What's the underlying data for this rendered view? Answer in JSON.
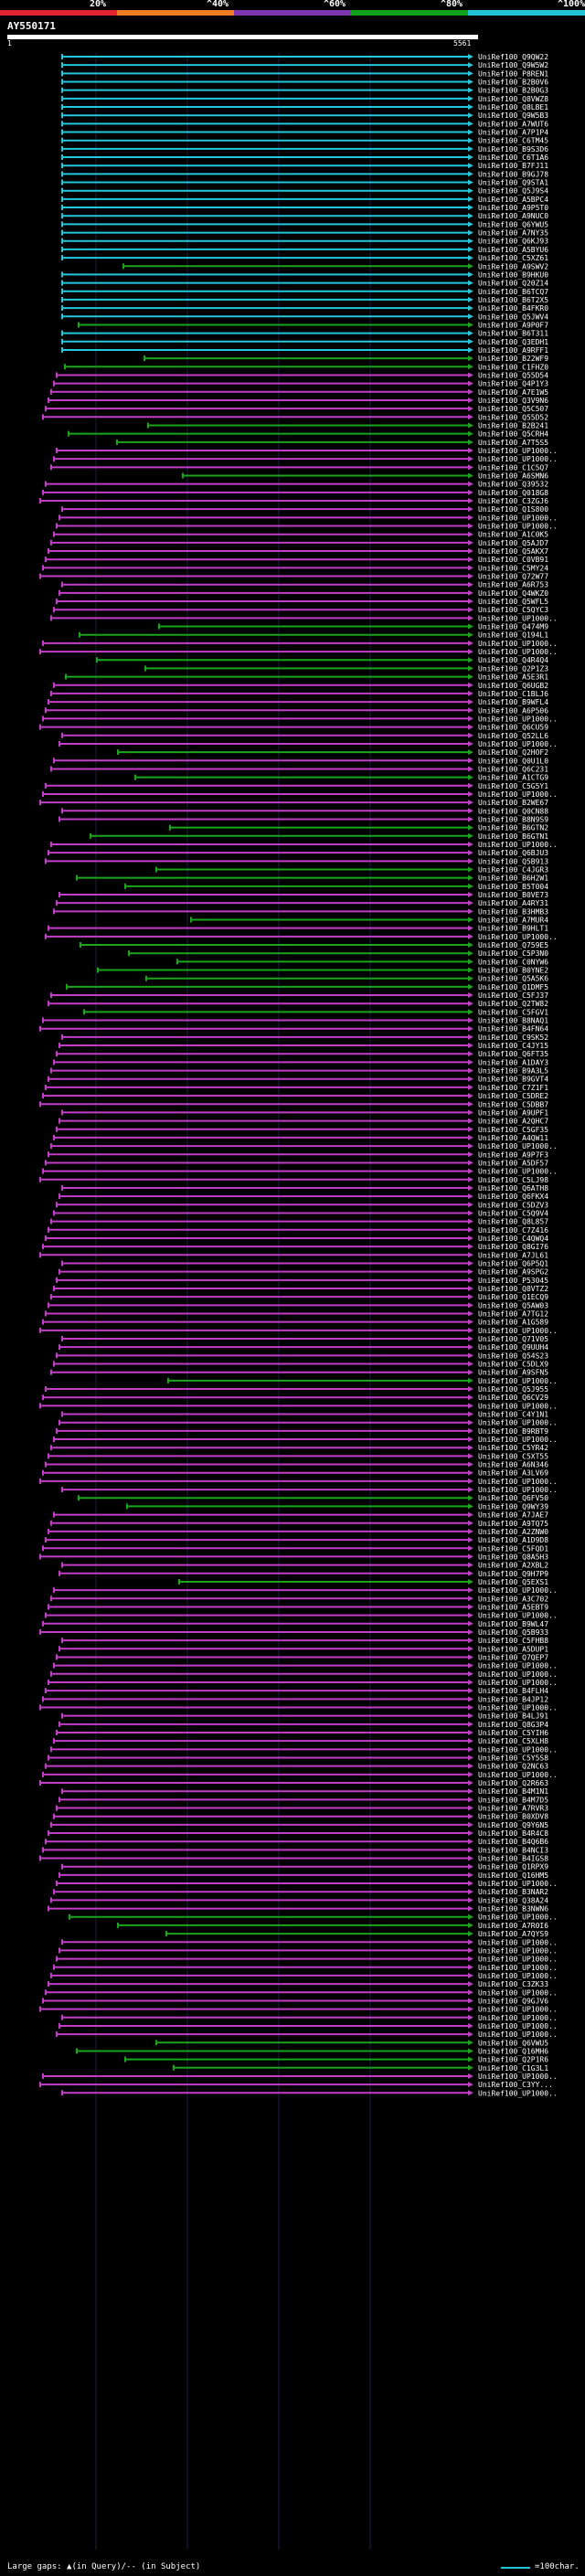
{
  "legend": [
    {
      "label": "20%",
      "color": "#e3232f"
    },
    {
      "label": "^40%",
      "color": "#f07e24"
    },
    {
      "label": "^60%",
      "color": "#7c35b0"
    },
    {
      "label": "^80%",
      "color": "#11a11e"
    },
    {
      "label": "^100%",
      "color": "#20c2d6"
    }
  ],
  "query": {
    "title": "AY550171",
    "start": "1",
    "end": "5561"
  },
  "footer": {
    "gaps": "Large gaps: ▲(in Query)/-- (in Subject)",
    "scale": "=100char."
  },
  "hits": [
    {
      "id": "UniRef100_Q9QW22",
      "c": "cyan"
    },
    {
      "id": "UniRef100_Q9W5W2",
      "c": "cyan"
    },
    {
      "id": "UniRef100_P8REN1",
      "c": "cyan"
    },
    {
      "id": "UniRef100_B2B0V6",
      "c": "cyan"
    },
    {
      "id": "UniRef100_B2B0G3",
      "c": "cyan"
    },
    {
      "id": "UniRef100_Q8VWZ8",
      "c": "cyan"
    },
    {
      "id": "UniRef100_Q8LBE1",
      "c": "cyan"
    },
    {
      "id": "UniRef100_Q9W5B3",
      "c": "cyan"
    },
    {
      "id": "UniRef100_A7WUT6",
      "c": "cyan"
    },
    {
      "id": "UniRef100_A7P1P4",
      "c": "cyan"
    },
    {
      "id": "UniRef100_C6TM45",
      "c": "cyan"
    },
    {
      "id": "UniRef100_B9S3D6",
      "c": "cyan"
    },
    {
      "id": "UniRef100_C6T1A6",
      "c": "cyan"
    },
    {
      "id": "UniRef100_B7FJ11",
      "c": "cyan"
    },
    {
      "id": "UniRef100_B9GJ78",
      "c": "cyan"
    },
    {
      "id": "UniRef100_Q9STA1",
      "c": "cyan"
    },
    {
      "id": "UniRef100_Q5J9S4",
      "c": "cyan"
    },
    {
      "id": "UniRef100_A5BPC4",
      "c": "cyan"
    },
    {
      "id": "UniRef100_A9P5T0",
      "c": "cyan"
    },
    {
      "id": "UniRef100_A9NUC0",
      "c": "cyan"
    },
    {
      "id": "UniRef100_Q6YWU5",
      "c": "cyan"
    },
    {
      "id": "UniRef100_A7NY35",
      "c": "cyan"
    },
    {
      "id": "UniRef100_Q6KJ93",
      "c": "cyan"
    },
    {
      "id": "UniRef100_A5BYU6",
      "c": "cyan"
    },
    {
      "id": "UniRef100_C5XZ61",
      "c": "cyan"
    },
    {
      "id": "UniRef100_A9SWV2",
      "c": "green"
    },
    {
      "id": "UniRef100_B9HKU0",
      "c": "cyan"
    },
    {
      "id": "UniRef100_Q20Z14",
      "c": "cyan"
    },
    {
      "id": "UniRef100_B6TCQ7",
      "c": "cyan"
    },
    {
      "id": "UniRef100_B6T2X5",
      "c": "cyan"
    },
    {
      "id": "UniRef100_B4FKR0",
      "c": "cyan"
    },
    {
      "id": "UniRef100_Q5JWV4",
      "c": "cyan"
    },
    {
      "id": "UniRef100_A9P0F7",
      "c": "green"
    },
    {
      "id": "UniRef100_B6T311",
      "c": "cyan"
    },
    {
      "id": "UniRef100_Q3EDH1",
      "c": "cyan"
    },
    {
      "id": "UniRef100_A9RFF1",
      "c": "cyan"
    },
    {
      "id": "UniRef100_B22WF9",
      "c": "green"
    },
    {
      "id": "UniRef100_C1FHZ0",
      "c": "green"
    },
    {
      "id": "UniRef100_Q55D54",
      "c": "magenta"
    },
    {
      "id": "UniRef100_Q4P1Y3",
      "c": "magenta"
    },
    {
      "id": "UniRef100_A7E1W5",
      "c": "magenta"
    },
    {
      "id": "UniRef100_Q3V9N6",
      "c": "magenta"
    },
    {
      "id": "UniRef100_Q5C507",
      "c": "magenta"
    },
    {
      "id": "UniRef100_Q55D52",
      "c": "magenta"
    },
    {
      "id": "UniRef100_B2B241",
      "c": "green"
    },
    {
      "id": "UniRef100_Q5CRH4",
      "c": "green"
    },
    {
      "id": "UniRef100_A7T5S5",
      "c": "green"
    },
    {
      "id": "UniRef100_UP1000..",
      "c": "magenta"
    },
    {
      "id": "UniRef100_UP1000..",
      "c": "magenta"
    },
    {
      "id": "UniRef100_C1C5Q7",
      "c": "magenta"
    },
    {
      "id": "UniRef100_A6SMN6",
      "c": "green"
    },
    {
      "id": "UniRef100_Q39532",
      "c": "magenta"
    },
    {
      "id": "UniRef100_Q018G8",
      "c": "magenta"
    },
    {
      "id": "UniRef100_C3ZGJ6",
      "c": "magenta"
    },
    {
      "id": "UniRef100_Q1S800",
      "c": "magenta"
    },
    {
      "id": "UniRef100_UP1000..",
      "c": "magenta"
    },
    {
      "id": "UniRef100_UP1000..",
      "c": "magenta"
    },
    {
      "id": "UniRef100_A1C0K5",
      "c": "magenta"
    },
    {
      "id": "UniRef100_Q5AJD7",
      "c": "magenta"
    },
    {
      "id": "UniRef100_Q5AKX7",
      "c": "magenta"
    },
    {
      "id": "UniRef100_C0VB91",
      "c": "magenta"
    },
    {
      "id": "UniRef100_C5MY24",
      "c": "magenta"
    },
    {
      "id": "UniRef100_Q72W77",
      "c": "magenta"
    },
    {
      "id": "UniRef100_A6R753",
      "c": "magenta"
    },
    {
      "id": "UniRef100_Q4WKZ0",
      "c": "magenta"
    },
    {
      "id": "UniRef100_Q5WFL5",
      "c": "magenta"
    },
    {
      "id": "UniRef100_C5QYC3",
      "c": "magenta"
    },
    {
      "id": "UniRef100_UP1000..",
      "c": "magenta"
    },
    {
      "id": "UniRef100_Q474M9",
      "c": "green"
    },
    {
      "id": "UniRef100_Q194L1",
      "c": "green"
    },
    {
      "id": "UniRef100_UP1000..",
      "c": "magenta"
    },
    {
      "id": "UniRef100_UP1000..",
      "c": "magenta"
    },
    {
      "id": "UniRef100_Q4R4Q4",
      "c": "green"
    },
    {
      "id": "UniRef100_Q2P1Z3",
      "c": "green"
    },
    {
      "id": "UniRef100_A5E3R1",
      "c": "green"
    },
    {
      "id": "UniRef100_Q6UGB2",
      "c": "magenta"
    },
    {
      "id": "UniRef100_C1BLJ6",
      "c": "magenta"
    },
    {
      "id": "UniRef100_B9WFL4",
      "c": "magenta"
    },
    {
      "id": "UniRef100_A6P506",
      "c": "magenta"
    },
    {
      "id": "UniRef100_UP1000..",
      "c": "magenta"
    },
    {
      "id": "UniRef100_Q6CU59",
      "c": "magenta"
    },
    {
      "id": "UniRef100_Q52LL6",
      "c": "magenta"
    },
    {
      "id": "UniRef100_UP1000..",
      "c": "magenta"
    },
    {
      "id": "UniRef100_Q2HOF2",
      "c": "green"
    },
    {
      "id": "UniRef100_Q0U1L0",
      "c": "magenta"
    },
    {
      "id": "UniRef100_Q6C231",
      "c": "magenta"
    },
    {
      "id": "UniRef100_A1CTG9",
      "c": "green"
    },
    {
      "id": "UniRef100_C5G5Y1",
      "c": "magenta"
    },
    {
      "id": "UniRef100_UP1000..",
      "c": "magenta"
    },
    {
      "id": "UniRef100_B2WE67",
      "c": "magenta"
    },
    {
      "id": "UniRef100_Q0CN88",
      "c": "magenta"
    },
    {
      "id": "UniRef100_B8N9S9",
      "c": "magenta"
    },
    {
      "id": "UniRef100_B6GTN2",
      "c": "green"
    },
    {
      "id": "UniRef100_B6GTN1",
      "c": "green"
    },
    {
      "id": "UniRef100_UP1000..",
      "c": "magenta"
    },
    {
      "id": "UniRef100_Q6BJU3",
      "c": "magenta"
    },
    {
      "id": "UniRef100_Q5B913",
      "c": "magenta"
    },
    {
      "id": "UniRef100_C4JGR3",
      "c": "green"
    },
    {
      "id": "UniRef100_B6H2W1",
      "c": "green"
    },
    {
      "id": "UniRef100_B5T004",
      "c": "green"
    },
    {
      "id": "UniRef100_B0VE73",
      "c": "magenta"
    },
    {
      "id": "UniRef100_A4RY31",
      "c": "magenta"
    },
    {
      "id": "UniRef100_B3HMB3",
      "c": "magenta"
    },
    {
      "id": "UniRef100_A7MUR4",
      "c": "green"
    },
    {
      "id": "UniRef100_B9HLT1",
      "c": "magenta"
    },
    {
      "id": "UniRef100_UP1000..",
      "c": "magenta"
    },
    {
      "id": "UniRef100_Q759E5",
      "c": "green"
    },
    {
      "id": "UniRef100_C5P3N0",
      "c": "green"
    },
    {
      "id": "UniRef100_C0NYW6",
      "c": "green"
    },
    {
      "id": "UniRef100_B0YNE2",
      "c": "green"
    },
    {
      "id": "UniRef100_Q5A5K6",
      "c": "green"
    },
    {
      "id": "UniRef100_Q1DMF5",
      "c": "green"
    },
    {
      "id": "UniRef100_C5FJ37",
      "c": "magenta"
    },
    {
      "id": "UniRef100_Q2TW82",
      "c": "magenta"
    },
    {
      "id": "UniRef100_C5FGV1",
      "c": "green"
    },
    {
      "id": "UniRef100_B8NAQ1",
      "c": "magenta"
    },
    {
      "id": "UniRef100_B4FN64",
      "c": "magenta"
    },
    {
      "id": "UniRef100_C9SK52",
      "c": "magenta"
    },
    {
      "id": "UniRef100_C4JY15",
      "c": "magenta"
    },
    {
      "id": "UniRef100_Q6FT35",
      "c": "magenta"
    },
    {
      "id": "UniRef100_A1DAY3",
      "c": "magenta"
    },
    {
      "id": "UniRef100_B9A3L5",
      "c": "magenta"
    },
    {
      "id": "UniRef100_B9GVT4",
      "c": "magenta"
    },
    {
      "id": "UniRef100_C7Z1F1",
      "c": "magenta"
    },
    {
      "id": "UniRef100_C5DRE2",
      "c": "magenta"
    },
    {
      "id": "UniRef100_C5DBB7",
      "c": "magenta"
    },
    {
      "id": "UniRef100_A9UPF1",
      "c": "magenta"
    },
    {
      "id": "UniRef100_A2QHC7",
      "c": "magenta"
    },
    {
      "id": "UniRef100_C5GF35",
      "c": "magenta"
    },
    {
      "id": "UniRef100_A4QW11",
      "c": "magenta"
    },
    {
      "id": "UniRef100_UP1000..",
      "c": "magenta"
    },
    {
      "id": "UniRef100_A9P7F3",
      "c": "magenta"
    },
    {
      "id": "UniRef100_A5DF57",
      "c": "magenta"
    },
    {
      "id": "UniRef100_UP1000..",
      "c": "magenta"
    },
    {
      "id": "UniRef100_C5LJ98",
      "c": "magenta"
    },
    {
      "id": "UniRef100_Q6ATH8",
      "c": "magenta"
    },
    {
      "id": "UniRef100_Q6FKX4",
      "c": "magenta"
    },
    {
      "id": "UniRef100_C5DZV3",
      "c": "magenta"
    },
    {
      "id": "UniRef100_C5Q9V4",
      "c": "magenta"
    },
    {
      "id": "UniRef100_Q8L857",
      "c": "magenta"
    },
    {
      "id": "UniRef100_C7Z416",
      "c": "magenta"
    },
    {
      "id": "UniRef100_C4QWQ4",
      "c": "magenta"
    },
    {
      "id": "UniRef100_Q8GI76",
      "c": "magenta"
    },
    {
      "id": "UniRef100_A7JL61",
      "c": "magenta"
    },
    {
      "id": "UniRef100_Q6P5Q1",
      "c": "magenta"
    },
    {
      "id": "UniRef100_A9SPG2",
      "c": "magenta"
    },
    {
      "id": "UniRef100_P53045",
      "c": "magenta"
    },
    {
      "id": "UniRef100_Q8VTZ2",
      "c": "magenta"
    },
    {
      "id": "UniRef100_Q1ECQ9",
      "c": "magenta"
    },
    {
      "id": "UniRef100_Q5AW03",
      "c": "magenta"
    },
    {
      "id": "UniRef100_A7TG12",
      "c": "magenta"
    },
    {
      "id": "UniRef100_A1G589",
      "c": "magenta"
    },
    {
      "id": "UniRef100_UP1000..",
      "c": "magenta"
    },
    {
      "id": "UniRef100_Q71V05",
      "c": "magenta"
    },
    {
      "id": "UniRef100_Q9UUH4",
      "c": "magenta"
    },
    {
      "id": "UniRef100_Q54S23",
      "c": "magenta"
    },
    {
      "id": "UniRef100_C5DLX9",
      "c": "magenta"
    },
    {
      "id": "UniRef100_A9SFN5",
      "c": "magenta"
    },
    {
      "id": "UniRef100_UP1000..",
      "c": "green"
    },
    {
      "id": "UniRef100_Q5J955",
      "c": "magenta"
    },
    {
      "id": "UniRef100_Q6CV29",
      "c": "magenta"
    },
    {
      "id": "UniRef100_UP1000..",
      "c": "magenta"
    },
    {
      "id": "UniRef100_C4Y1N1",
      "c": "magenta"
    },
    {
      "id": "UniRef100_UP1000..",
      "c": "magenta"
    },
    {
      "id": "UniRef100_B9RBT9",
      "c": "magenta"
    },
    {
      "id": "UniRef100_UP1000..",
      "c": "magenta"
    },
    {
      "id": "UniRef100_C5YR42",
      "c": "magenta"
    },
    {
      "id": "UniRef100_C5XT55",
      "c": "magenta"
    },
    {
      "id": "UniRef100_A6N346",
      "c": "magenta"
    },
    {
      "id": "UniRef100_A3LV69",
      "c": "magenta"
    },
    {
      "id": "UniRef100_UP1000..",
      "c": "magenta"
    },
    {
      "id": "UniRef100_UP1000..",
      "c": "magenta"
    },
    {
      "id": "UniRef100_Q6FV50",
      "c": "green"
    },
    {
      "id": "UniRef100_Q9WY39",
      "c": "green"
    },
    {
      "id": "UniRef100_A7JAE7",
      "c": "magenta"
    },
    {
      "id": "UniRef100_A9TQ75",
      "c": "magenta"
    },
    {
      "id": "UniRef100_A2ZNW0",
      "c": "magenta"
    },
    {
      "id": "UniRef100_A1D9D8",
      "c": "magenta"
    },
    {
      "id": "UniRef100_C5FQD1",
      "c": "magenta"
    },
    {
      "id": "UniRef100_Q8A5H3",
      "c": "magenta"
    },
    {
      "id": "UniRef100_A2XBL2",
      "c": "magenta"
    },
    {
      "id": "UniRef100_Q9H7P9",
      "c": "magenta"
    },
    {
      "id": "UniRef100_Q5EXS1",
      "c": "green"
    },
    {
      "id": "UniRef100_UP1000..",
      "c": "magenta"
    },
    {
      "id": "UniRef100_A3C702",
      "c": "magenta"
    },
    {
      "id": "UniRef100_A5EBT9",
      "c": "magenta"
    },
    {
      "id": "UniRef100_UP1000..",
      "c": "magenta"
    },
    {
      "id": "UniRef100_B9WL47",
      "c": "magenta"
    },
    {
      "id": "UniRef100_Q5B933",
      "c": "magenta"
    },
    {
      "id": "UniRef100_C5FHB8",
      "c": "magenta"
    },
    {
      "id": "UniRef100_A5DUP1",
      "c": "magenta"
    },
    {
      "id": "UniRef100_Q7QEP7",
      "c": "magenta"
    },
    {
      "id": "UniRef100_UP1000..",
      "c": "magenta"
    },
    {
      "id": "UniRef100_UP1000..",
      "c": "magenta"
    },
    {
      "id": "UniRef100_UP1000..",
      "c": "magenta"
    },
    {
      "id": "UniRef100_B4FLH4",
      "c": "magenta"
    },
    {
      "id": "UniRef100_B4JP12",
      "c": "magenta"
    },
    {
      "id": "UniRef100_UP1000..",
      "c": "magenta"
    },
    {
      "id": "UniRef100_B4LJ91",
      "c": "magenta"
    },
    {
      "id": "UniRef100_Q8G3P4",
      "c": "magenta"
    },
    {
      "id": "UniRef100_C5YIH6",
      "c": "magenta"
    },
    {
      "id": "UniRef100_C5XLH8",
      "c": "magenta"
    },
    {
      "id": "UniRef100_UP1000..",
      "c": "magenta"
    },
    {
      "id": "UniRef100_C5Y5S8",
      "c": "magenta"
    },
    {
      "id": "UniRef100_Q2NC63",
      "c": "magenta"
    },
    {
      "id": "UniRef100_UP1000..",
      "c": "magenta"
    },
    {
      "id": "UniRef100_Q2R663",
      "c": "magenta"
    },
    {
      "id": "UniRef100_B4M1N1",
      "c": "magenta"
    },
    {
      "id": "UniRef100_B4M7D5",
      "c": "magenta"
    },
    {
      "id": "UniRef100_A7RVR3",
      "c": "magenta"
    },
    {
      "id": "UniRef100_B0XDV8",
      "c": "magenta"
    },
    {
      "id": "UniRef100_Q9Y6N5",
      "c": "magenta"
    },
    {
      "id": "UniRef100_B4R4C8",
      "c": "magenta"
    },
    {
      "id": "UniRef100_B4Q6B6",
      "c": "magenta"
    },
    {
      "id": "UniRef100_B4NCI3",
      "c": "magenta"
    },
    {
      "id": "UniRef100_B4IGS8",
      "c": "magenta"
    },
    {
      "id": "UniRef100_Q1RPX9",
      "c": "magenta"
    },
    {
      "id": "UniRef100_Q16HM5",
      "c": "magenta"
    },
    {
      "id": "UniRef100_UP1000..",
      "c": "magenta"
    },
    {
      "id": "UniRef100_B3NAR2",
      "c": "magenta"
    },
    {
      "id": "UniRef100_Q38A24",
      "c": "magenta"
    },
    {
      "id": "UniRef100_B3NWN6",
      "c": "magenta"
    },
    {
      "id": "UniRef100_UP1000..",
      "c": "green"
    },
    {
      "id": "UniRef100_A7R0I6",
      "c": "green"
    },
    {
      "id": "UniRef100_A7QYS9",
      "c": "green"
    },
    {
      "id": "UniRef100_UP1000..",
      "c": "magenta"
    },
    {
      "id": "UniRef100_UP1000..",
      "c": "magenta"
    },
    {
      "id": "UniRef100_UP1000..",
      "c": "magenta"
    },
    {
      "id": "UniRef100_UP1000..",
      "c": "magenta"
    },
    {
      "id": "UniRef100_UP1000..",
      "c": "magenta"
    },
    {
      "id": "UniRef100_C3ZK33",
      "c": "magenta"
    },
    {
      "id": "UniRef100_UP1000..",
      "c": "magenta"
    },
    {
      "id": "UniRef100_Q9GJV6",
      "c": "magenta"
    },
    {
      "id": "UniRef100_UP1000..",
      "c": "magenta"
    },
    {
      "id": "UniRef100_UP1000..",
      "c": "magenta"
    },
    {
      "id": "UniRef100_UP1000..",
      "c": "magenta"
    },
    {
      "id": "UniRef100_UP1000..",
      "c": "magenta"
    },
    {
      "id": "UniRef100_Q6VWU5",
      "c": "green"
    },
    {
      "id": "UniRef100_Q16MH6",
      "c": "green"
    },
    {
      "id": "UniRef100_Q2P1R6",
      "c": "green"
    },
    {
      "id": "UniRef100_C1G3L1",
      "c": "green"
    },
    {
      "id": "UniRef100_UP1000..",
      "c": "magenta"
    },
    {
      "id": "UniRef100_C3YY...",
      "c": "magenta"
    },
    {
      "id": "UniRef100_UP1000..",
      "c": "magenta"
    }
  ]
}
